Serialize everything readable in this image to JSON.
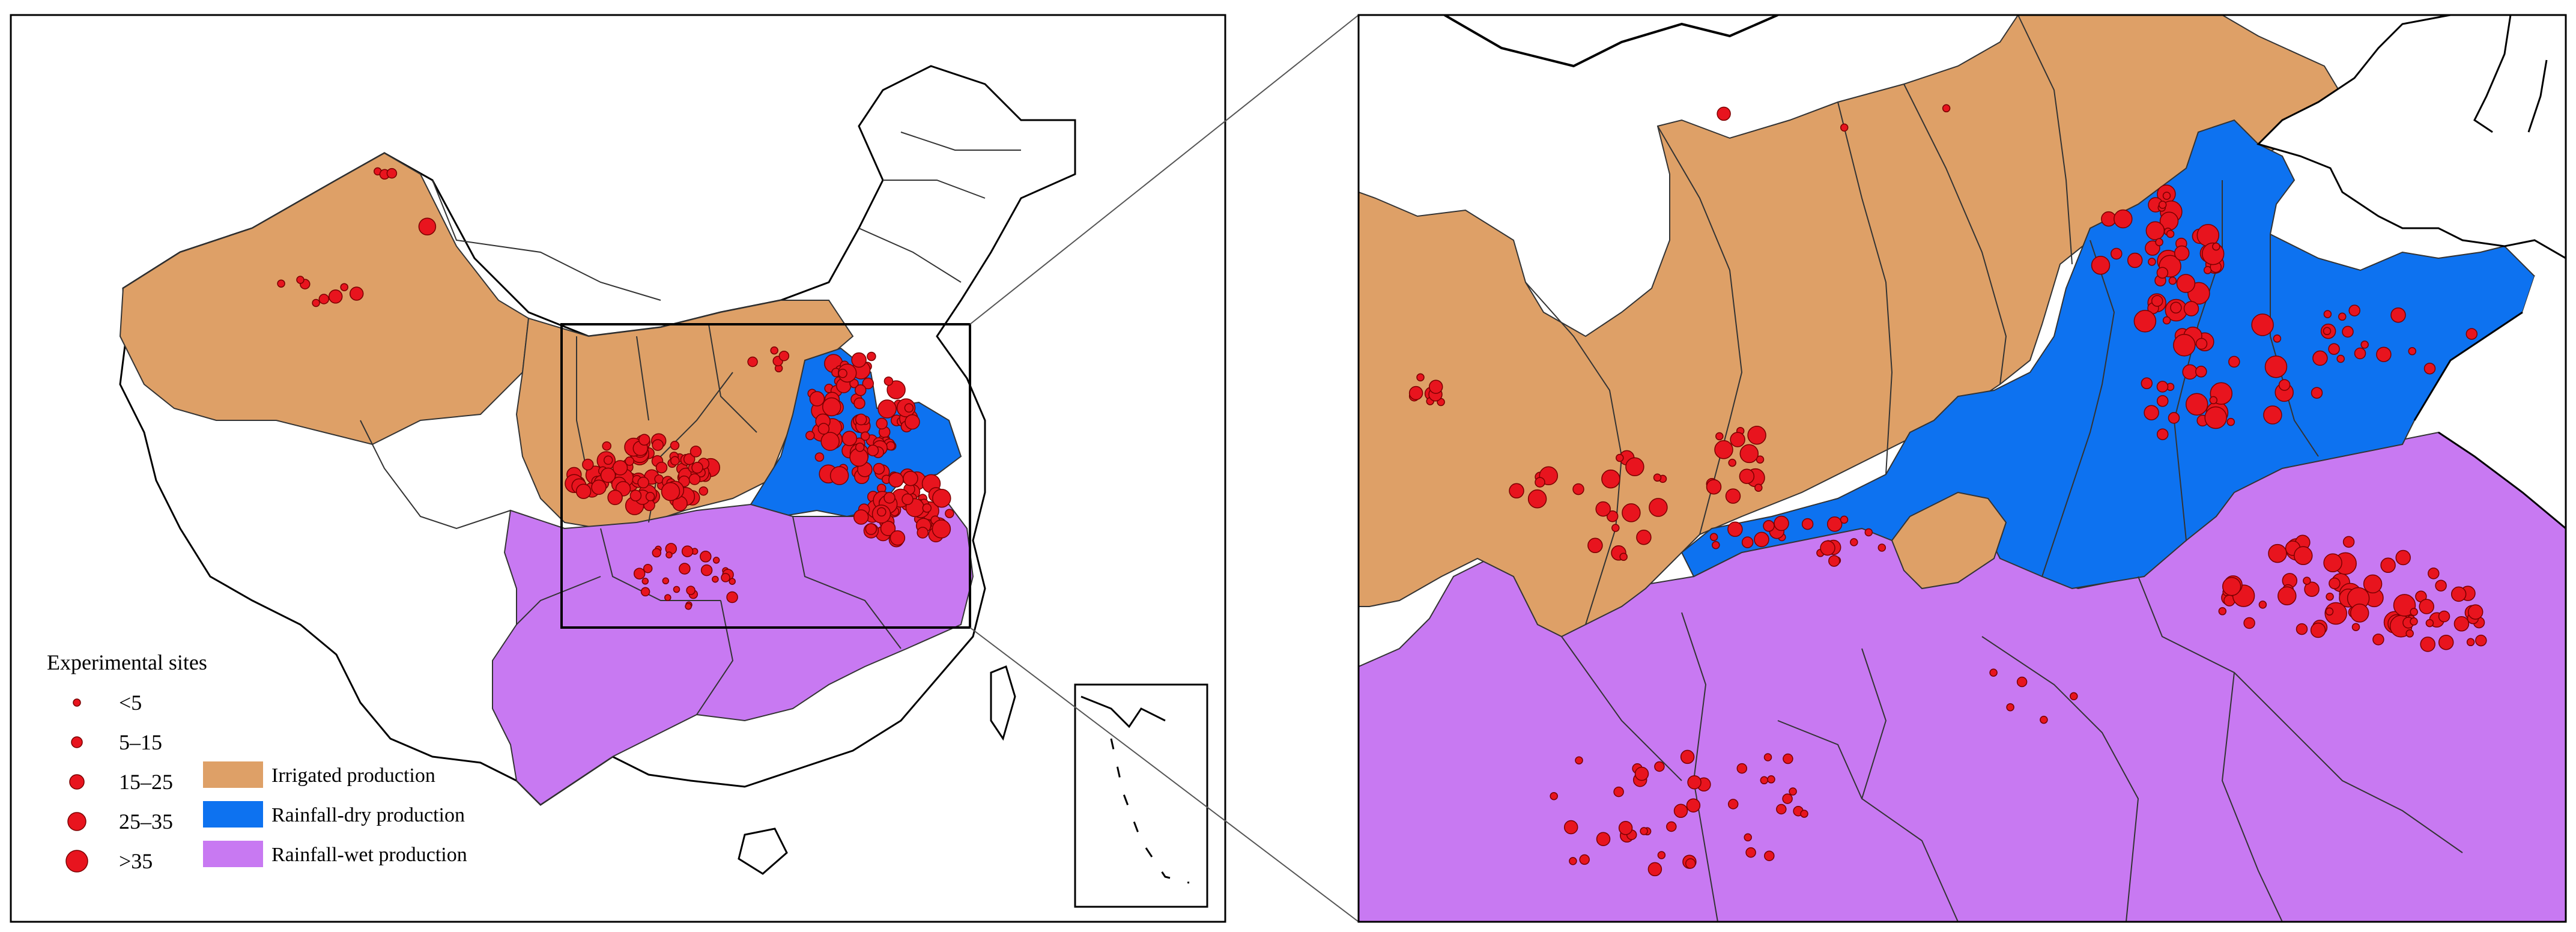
{
  "colors": {
    "irrigated": "#dea067",
    "rainfall_dry": "#0d72f0",
    "rainfall_wet": "#c879f2",
    "site": "#e8141e",
    "frame": "#000000"
  },
  "legend": {
    "sites_title": "Experimental sites",
    "site_classes": [
      {
        "label": "<5",
        "size_rank": 1
      },
      {
        "label": "5–15",
        "size_rank": 2
      },
      {
        "label": "15–25",
        "size_rank": 3
      },
      {
        "label": "25–35",
        "size_rank": 4
      },
      {
        "label": ">35",
        "size_rank": 5
      }
    ],
    "zones": [
      {
        "label": "Irrigated production",
        "color_key": "irrigated"
      },
      {
        "label": "Rainfall-dry production",
        "color_key": "rainfall_dry"
      },
      {
        "label": "Rainfall-wet production",
        "color_key": "rainfall_wet"
      }
    ]
  }
}
